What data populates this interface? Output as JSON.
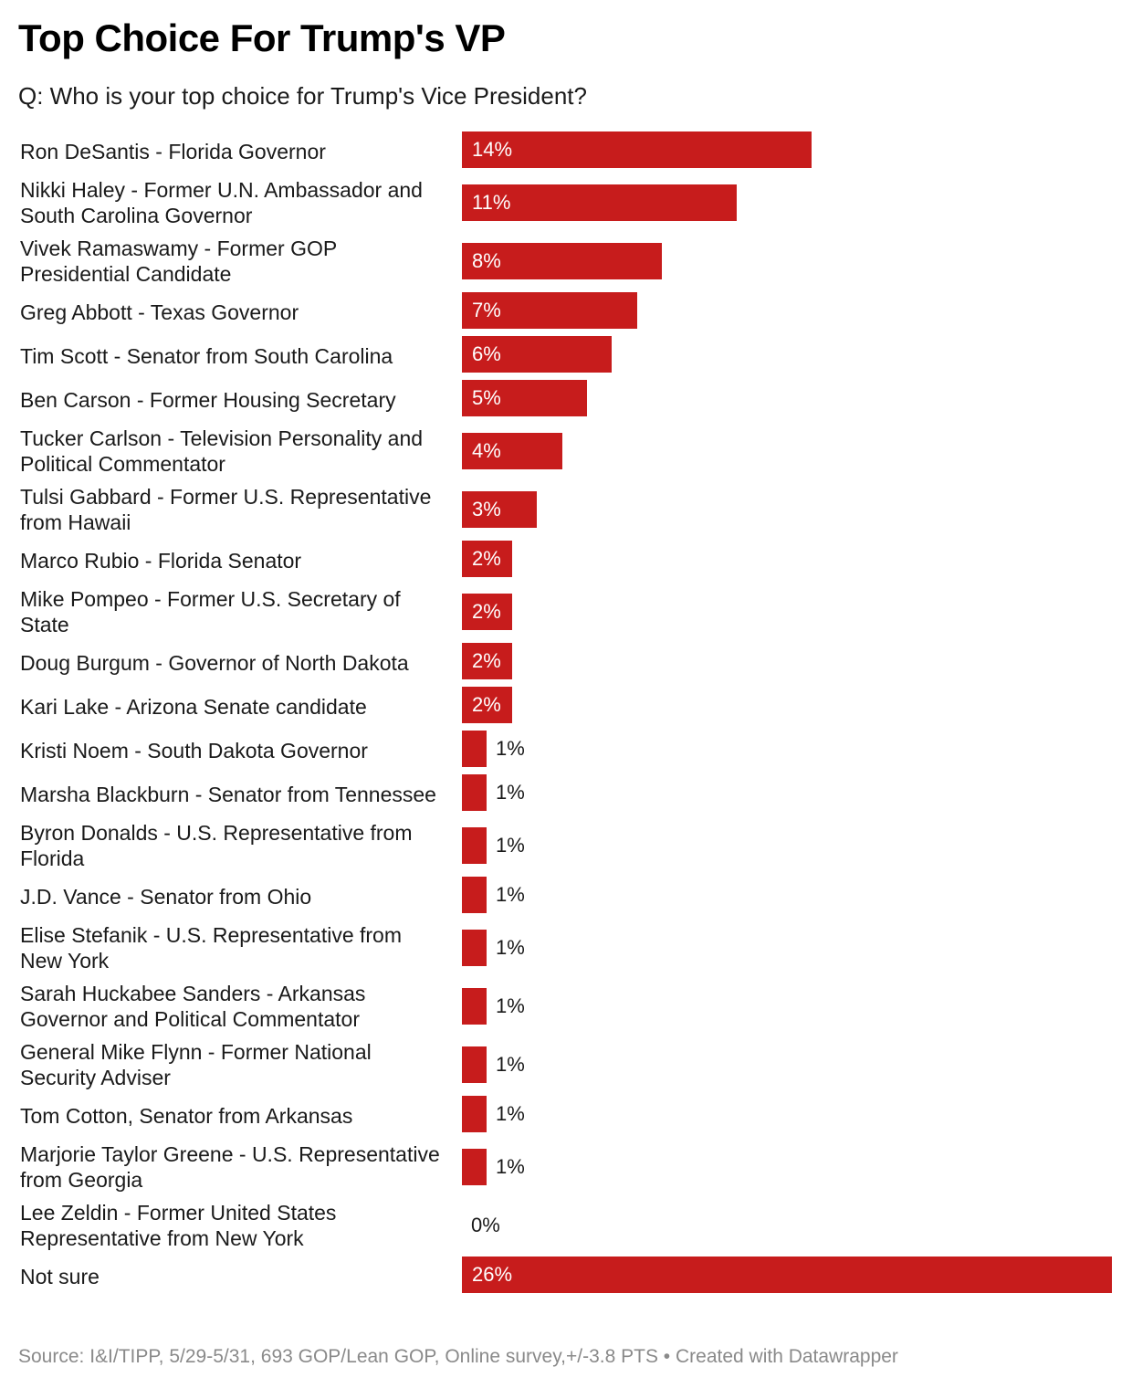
{
  "chart_data": {
    "type": "bar",
    "orientation": "horizontal",
    "title": "Top Choice For Trump's VP",
    "subtitle": "Q: Who is your top choice for Trump's Vice President?",
    "unit": "%",
    "xlim": [
      0,
      26
    ],
    "categories": [
      "Ron DeSantis - Florida Governor",
      "Nikki Haley - Former U.N. Ambassador and South Carolina Governor",
      "Vivek Ramaswamy - Former GOP Presidential Candidate",
      "Greg Abbott - Texas Governor",
      "Tim Scott - Senator from South Carolina",
      "Ben Carson - Former Housing Secretary",
      "Tucker Carlson - Television Personality and Political Commentator",
      "Tulsi Gabbard - Former U.S. Representative from Hawaii",
      "Marco Rubio - Florida Senator",
      "Mike Pompeo - Former U.S. Secretary of State",
      "Doug Burgum - Governor of North Dakota",
      "Kari Lake - Arizona Senate candidate",
      "Kristi Noem - South Dakota Governor",
      "Marsha Blackburn - Senator from Tennessee",
      "Byron Donalds - U.S. Representative from Florida",
      "J.D. Vance - Senator from Ohio",
      "Elise Stefanik - U.S. Representative from New York",
      "Sarah Huckabee Sanders - Arkansas Governor and Political Commentator",
      "General Mike Flynn - Former National Security Adviser",
      "Tom Cotton, Senator from Arkansas",
      "Marjorie Taylor Greene - U.S. Representative from Georgia",
      "Lee Zeldin - Former United States Representative from New York",
      "Not sure"
    ],
    "label_lines": [
      [
        "Ron DeSantis - Florida Governor"
      ],
      [
        "Nikki Haley - Former U.N. Ambassador and",
        "South Carolina Governor"
      ],
      [
        "Vivek Ramaswamy - Former GOP",
        "Presidential Candidate"
      ],
      [
        "Greg Abbott - Texas Governor"
      ],
      [
        "Tim Scott - Senator from South Carolina"
      ],
      [
        "Ben Carson - Former Housing Secretary"
      ],
      [
        "Tucker Carlson - Television Personality and",
        "Political Commentator"
      ],
      [
        "Tulsi Gabbard - Former U.S. Representative",
        "from Hawaii"
      ],
      [
        "Marco Rubio - Florida Senator"
      ],
      [
        "Mike Pompeo - Former U.S. Secretary of",
        "State"
      ],
      [
        "Doug Burgum - Governor of North Dakota"
      ],
      [
        "Kari Lake - Arizona Senate candidate"
      ],
      [
        "Kristi Noem - South Dakota Governor"
      ],
      [
        "Marsha Blackburn - Senator from Tennessee"
      ],
      [
        "Byron Donalds - U.S. Representative from",
        "Florida"
      ],
      [
        "J.D. Vance - Senator from Ohio"
      ],
      [
        "Elise Stefanik - U.S. Representative from",
        "New York"
      ],
      [
        "Sarah Huckabee Sanders - Arkansas",
        "Governor and Political Commentator"
      ],
      [
        "General Mike Flynn - Former National",
        "Security Adviser"
      ],
      [
        "Tom Cotton, Senator from Arkansas"
      ],
      [
        "Marjorie Taylor Greene - U.S. Representative",
        "from Georgia"
      ],
      [
        "Lee Zeldin - Former United States",
        "Representative from New York"
      ],
      [
        "Not sure"
      ]
    ],
    "values": [
      14,
      11,
      8,
      7,
      6,
      5,
      4,
      3,
      2,
      2,
      2,
      2,
      1,
      1,
      1,
      1,
      1,
      1,
      1,
      1,
      1,
      0,
      26
    ],
    "value_labels": [
      "14%",
      "11%",
      "8%",
      "7%",
      "6%",
      "5%",
      "4%",
      "3%",
      "2%",
      "2%",
      "2%",
      "2%",
      "1%",
      "1%",
      "1%",
      "1%",
      "1%",
      "1%",
      "1%",
      "1%",
      "1%",
      "0%",
      "26%"
    ],
    "legend": "none",
    "grid": false,
    "bar_color": "#c71c1c"
  },
  "footer": "Source: I&I/TIPP, 5/29-5/31, 693 GOP/Lean GOP, Online survey,+/-3.8 PTS • Created with Datawrapper"
}
